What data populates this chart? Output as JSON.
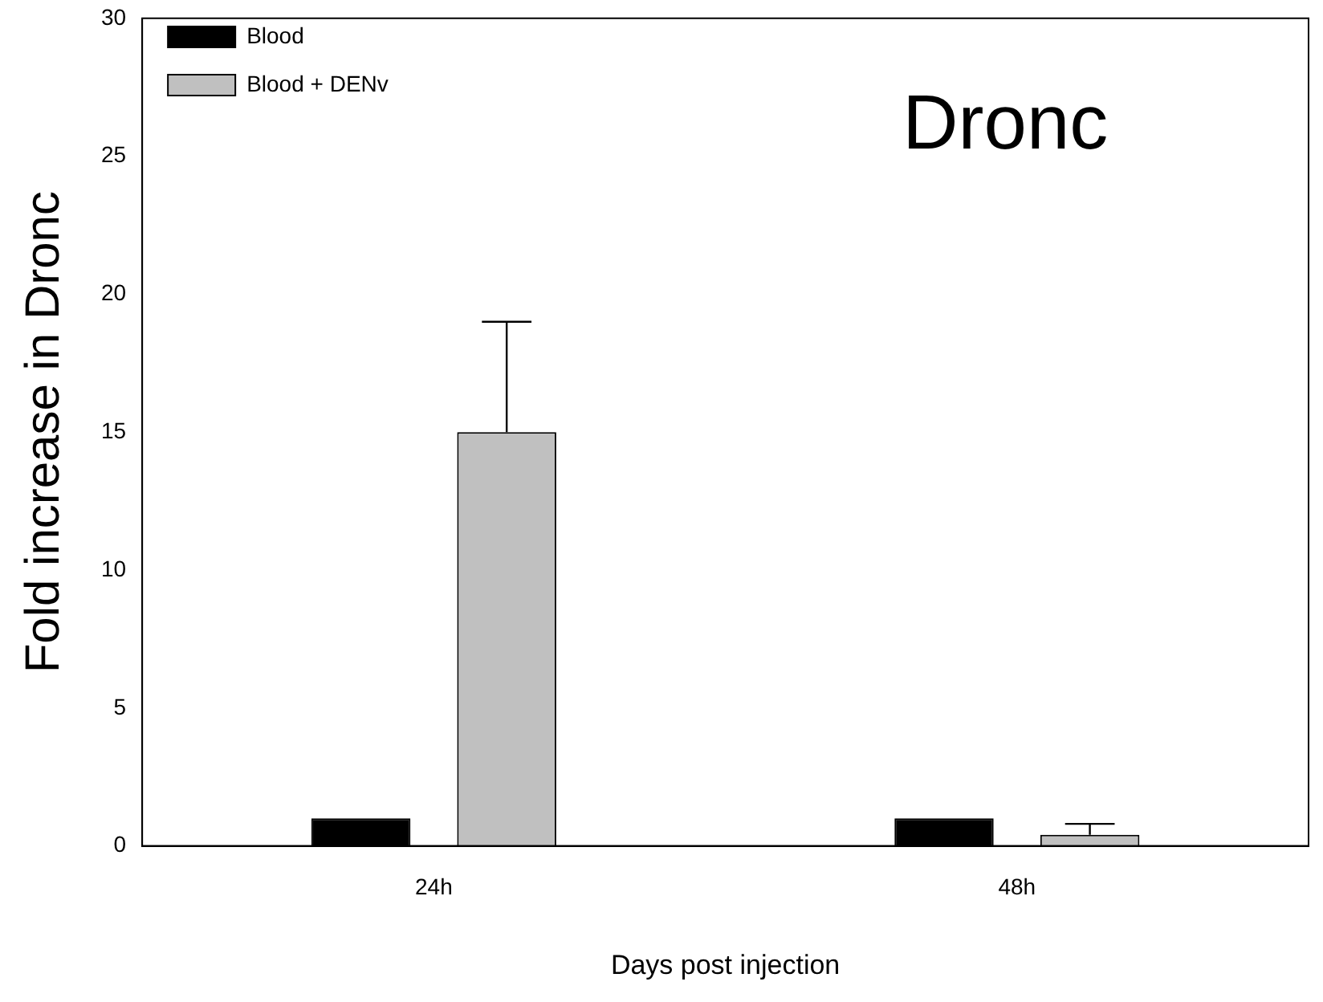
{
  "chart_data": {
    "type": "bar",
    "title": "Dronc",
    "xlabel": "Days post injection",
    "ylabel": "Fold increase in Dronc",
    "categories": [
      "24h",
      "48h"
    ],
    "series": [
      {
        "name": "Blood",
        "color": "#000000",
        "values": [
          1.0,
          1.0
        ]
      },
      {
        "name": "Blood + DENv",
        "color": "#c0c0c0",
        "values": [
          15,
          0.4
        ],
        "errors": [
          [
            15,
            19
          ],
          [
            0.4,
            0.8
          ]
        ]
      }
    ],
    "ylim": [
      0,
      30
    ],
    "yticks": [
      0,
      5,
      10,
      15,
      20,
      25,
      30
    ],
    "grid": false,
    "legend": "top left"
  }
}
